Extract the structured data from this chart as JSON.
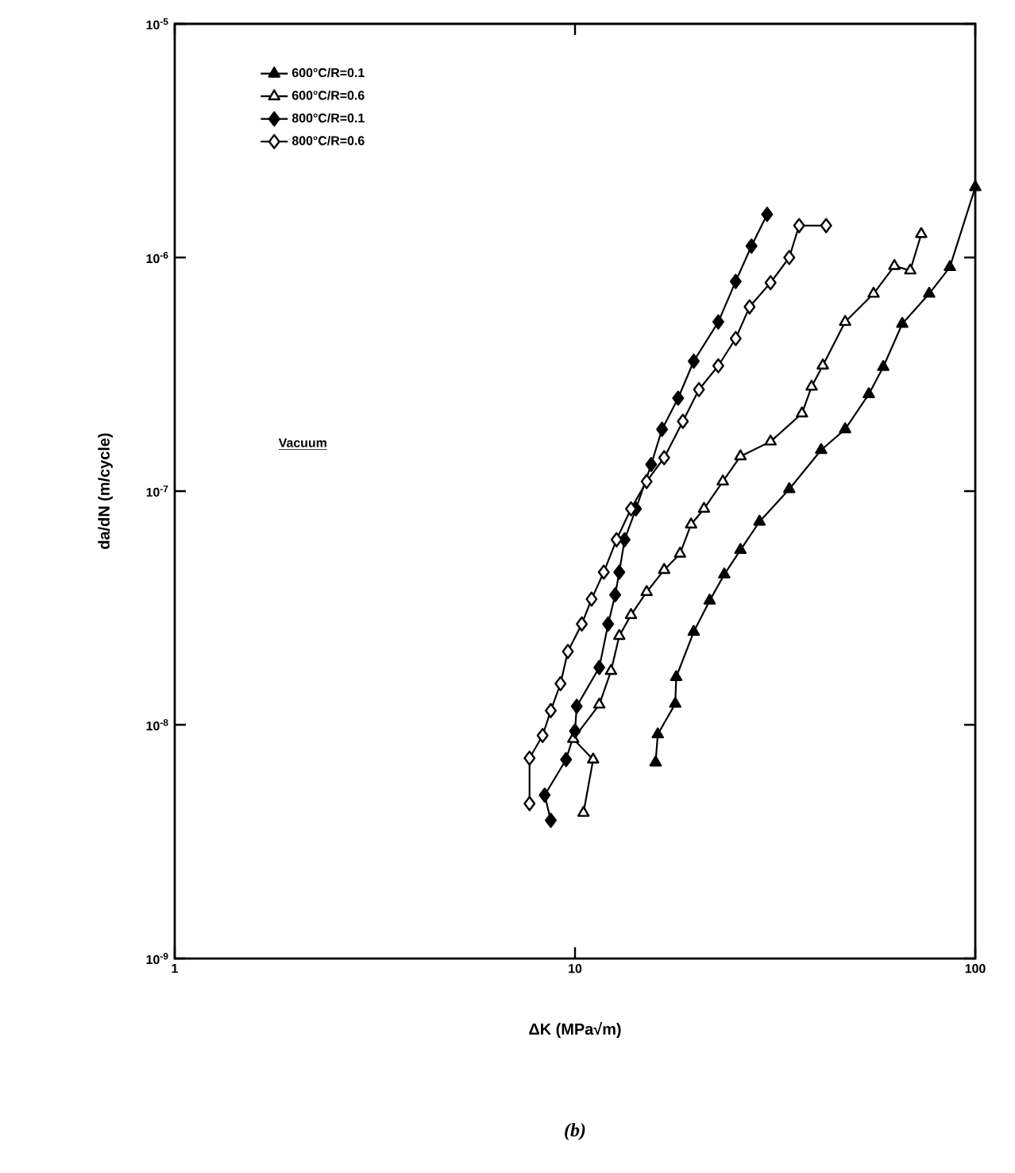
{
  "chart_data": {
    "type": "line",
    "xlabel": "ΔK (MPa√m)",
    "ylabel": "da/dN (m/cycle)",
    "log": "xy",
    "xlim": [
      1,
      100
    ],
    "ylim": [
      1e-09,
      1e-05
    ],
    "xticks": [
      1,
      10,
      100
    ],
    "yticks": [
      {
        "value": 1e-09,
        "label": "10$^{-9}$"
      },
      {
        "value": 1e-08,
        "label": "10$^{-8}$"
      },
      {
        "value": 1e-07,
        "label": "10$^{-7}$"
      },
      {
        "value": 1e-06,
        "label": "10$^{-6}$"
      },
      {
        "value": 1e-05,
        "label": "10$^{-5}$"
      }
    ],
    "grid": false,
    "legend": "top left",
    "line_style": "solid",
    "annotations": [
      "Vacuum",
      "(b)"
    ],
    "series": [
      {
        "name": "600°C/R=0.1",
        "color": "#000000",
        "marker": "triangle",
        "x": [
          15.9,
          16.1,
          17.8,
          17.9,
          19.8,
          21.7,
          23.6,
          25.9,
          28.9,
          34.3,
          41.2,
          47.3,
          54.2,
          58.9,
          65.7,
          76.7,
          86.4,
          100
        ],
        "values": [
          6.9e-09,
          9.1e-09,
          1.23e-08,
          1.6e-08,
          2.5e-08,
          3.4e-08,
          4.4e-08,
          5.6e-08,
          7.4e-08,
          1.02e-07,
          1.5e-07,
          1.84e-07,
          2.6e-07,
          3.4e-07,
          5.2e-07,
          7e-07,
          9.1e-07,
          2e-06
        ]
      },
      {
        "name": "600°C/R=0.6",
        "color": "#000000",
        "marker": "triangle-open",
        "x": [
          10.5,
          11.1,
          9.9,
          11.5,
          12.3,
          12.9,
          13.8,
          15.1,
          16.7,
          18.3,
          19.5,
          21.0,
          23.4,
          25.9,
          30.8,
          36.9,
          39.0,
          41.6,
          47.3,
          55.7,
          62.8,
          68.8,
          73.3
        ],
        "values": [
          4.2e-09,
          7.1e-09,
          8.7e-09,
          1.22e-08,
          1.7e-08,
          2.4e-08,
          2.95e-08,
          3.7e-08,
          4.6e-08,
          5.4e-08,
          7.2e-08,
          8.4e-08,
          1.1e-07,
          1.41e-07,
          1.63e-07,
          2.15e-07,
          2.8e-07,
          3.45e-07,
          5.3e-07,
          7e-07,
          9.2e-07,
          8.8e-07,
          1.26e-06
        ]
      },
      {
        "name": "800°C/R=0.1",
        "color": "#000000",
        "marker": "diamond",
        "x": [
          8.7,
          8.4,
          9.5,
          10.0,
          10.1,
          11.5,
          12.1,
          12.6,
          12.9,
          13.3,
          14.2,
          15.5,
          16.5,
          18.1,
          19.8,
          22.8,
          25.2,
          27.6,
          30.2
        ],
        "values": [
          3.9e-09,
          5e-09,
          7.1e-09,
          9.4e-09,
          1.2e-08,
          1.76e-08,
          2.7e-08,
          3.6e-08,
          4.5e-08,
          6.2e-08,
          8.4e-08,
          1.3e-07,
          1.84e-07,
          2.5e-07,
          3.6e-07,
          5.3e-07,
          7.9e-07,
          1.12e-06,
          1.53e-06
        ]
      },
      {
        "name": "800°C/R=0.6",
        "color": "#000000",
        "marker": "diamond-open",
        "x": [
          7.7,
          7.7,
          8.3,
          8.7,
          9.2,
          9.6,
          10.4,
          11.0,
          11.8,
          12.7,
          13.8,
          15.1,
          16.7,
          18.6,
          20.4,
          22.8,
          25.2,
          27.3,
          30.8,
          34.3,
          36.3,
          42.4
        ],
        "values": [
          4.6e-09,
          7.2e-09,
          9e-09,
          1.15e-08,
          1.5e-08,
          2.06e-08,
          2.7e-08,
          3.45e-08,
          4.5e-08,
          6.2e-08,
          8.4e-08,
          1.1e-07,
          1.39e-07,
          1.99e-07,
          2.72e-07,
          3.44e-07,
          4.5e-07,
          6.15e-07,
          7.8e-07,
          1e-06,
          1.37e-06,
          1.37e-06
        ]
      }
    ]
  }
}
